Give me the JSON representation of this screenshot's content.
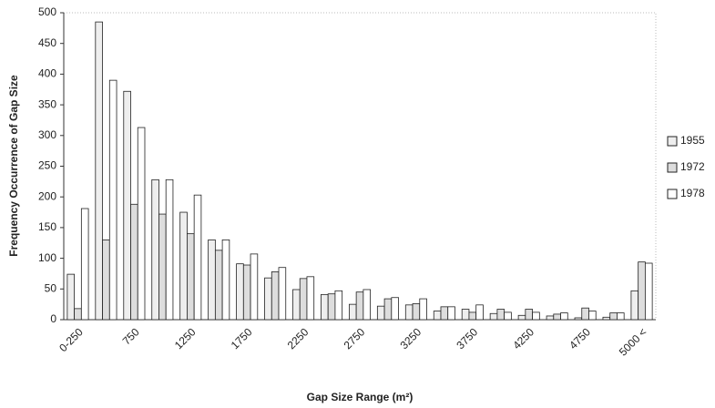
{
  "chart_data": {
    "type": "bar",
    "x_label": "Gap Size Range (m²)",
    "y_label": "Frequency Occurrence of Gap Size",
    "categories": [
      "0-250",
      null,
      "750",
      null,
      "1250",
      null,
      "1750",
      null,
      "2250",
      null,
      "2750",
      null,
      "3250",
      null,
      "3750",
      null,
      "4250",
      null,
      "4750",
      null,
      "5000 <"
    ],
    "series": [
      {
        "name": "1955",
        "color": "#eeeeee",
        "values": [
          74,
          485,
          372,
          228,
          175,
          130,
          91,
          68,
          49,
          41,
          25,
          22,
          24,
          14,
          17,
          10,
          7,
          6,
          3,
          4,
          47
        ]
      },
      {
        "name": "1972",
        "color": "#dddddd",
        "values": [
          18,
          130,
          188,
          172,
          140,
          113,
          89,
          78,
          67,
          42,
          45,
          34,
          26,
          21,
          12,
          17,
          17,
          9,
          19,
          11,
          94
        ]
      },
      {
        "name": "1978",
        "color": "#ffffff",
        "values": [
          181,
          390,
          313,
          228,
          203,
          130,
          107,
          85,
          70,
          47,
          49,
          36,
          34,
          21,
          24,
          12,
          12,
          11,
          14,
          11,
          92
        ]
      }
    ],
    "ylim": [
      0,
      500
    ],
    "yticks": [
      0,
      50,
      100,
      150,
      200,
      250,
      300,
      350,
      400,
      450,
      500
    ],
    "grid": false,
    "legend": "right"
  }
}
